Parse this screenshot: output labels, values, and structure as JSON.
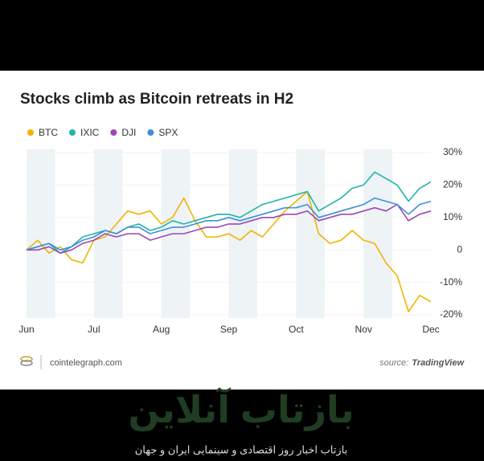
{
  "chart_data": {
    "type": "line",
    "title": "Stocks climb as Bitcoin retreats in H2",
    "categories": [
      "Jun",
      null,
      null,
      null,
      null,
      null,
      "Jul",
      null,
      null,
      null,
      null,
      null,
      "Aug",
      null,
      null,
      null,
      null,
      null,
      "Sep",
      null,
      null,
      null,
      null,
      null,
      "Oct",
      null,
      null,
      null,
      null,
      null,
      "Nov",
      null,
      null,
      null,
      null,
      null,
      "Dec"
    ],
    "series": [
      {
        "name": "BTC",
        "color": "#f2b400",
        "values": [
          0,
          3,
          -1,
          1,
          -3,
          -4,
          3,
          4,
          8,
          12,
          11,
          12,
          8,
          10,
          16,
          9,
          4,
          4,
          5,
          3,
          6,
          4,
          8,
          12,
          15,
          18,
          5,
          2,
          3,
          6,
          3,
          2,
          -4,
          -8,
          -19,
          -14,
          -16
        ]
      },
      {
        "name": "IXIC",
        "color": "#1fb5a8",
        "values": [
          0,
          1,
          2,
          -1,
          1,
          4,
          5,
          6,
          5,
          7,
          8,
          6,
          7,
          9,
          8,
          9,
          10,
          11,
          11,
          10,
          12,
          14,
          15,
          16,
          17,
          18,
          12,
          14,
          16,
          19,
          20,
          24,
          22,
          20,
          15,
          19,
          21
        ]
      },
      {
        "name": "DJI",
        "color": "#9b48b5",
        "values": [
          0,
          0,
          1,
          -1,
          0,
          2,
          3,
          5,
          4,
          5,
          5,
          3,
          4,
          5,
          5,
          6,
          7,
          7,
          8,
          8,
          9,
          10,
          10,
          11,
          11,
          12,
          9,
          10,
          11,
          11,
          12,
          13,
          12,
          14,
          9,
          11,
          12
        ]
      },
      {
        "name": "SPX",
        "color": "#3f8fd8",
        "values": [
          0,
          1,
          2,
          0,
          1,
          3,
          4,
          6,
          5,
          7,
          7,
          5,
          6,
          7,
          7,
          8,
          9,
          9,
          10,
          9,
          10,
          11,
          12,
          13,
          13,
          14,
          10,
          11,
          12,
          13,
          14,
          16,
          15,
          14,
          11,
          14,
          15
        ]
      }
    ],
    "ylim": [
      -20,
      30
    ],
    "yticks": [
      {
        "value": 30,
        "label": "30%"
      },
      {
        "value": 20,
        "label": "20%"
      },
      {
        "value": 10,
        "label": "10%"
      },
      0,
      {
        "value": -10,
        "label": "-10%"
      },
      {
        "value": -20,
        "label": "-20%"
      }
    ],
    "grid": true
  },
  "footer": {
    "site": "cointelegraph.com",
    "source_prefix": "source:",
    "source_name": "TradingView"
  },
  "watermark": {
    "title": "بازتاب آنلاین",
    "subtitle": "بازتاب اخبار روز اقتصادی و سینمایی ایران و جهان"
  }
}
